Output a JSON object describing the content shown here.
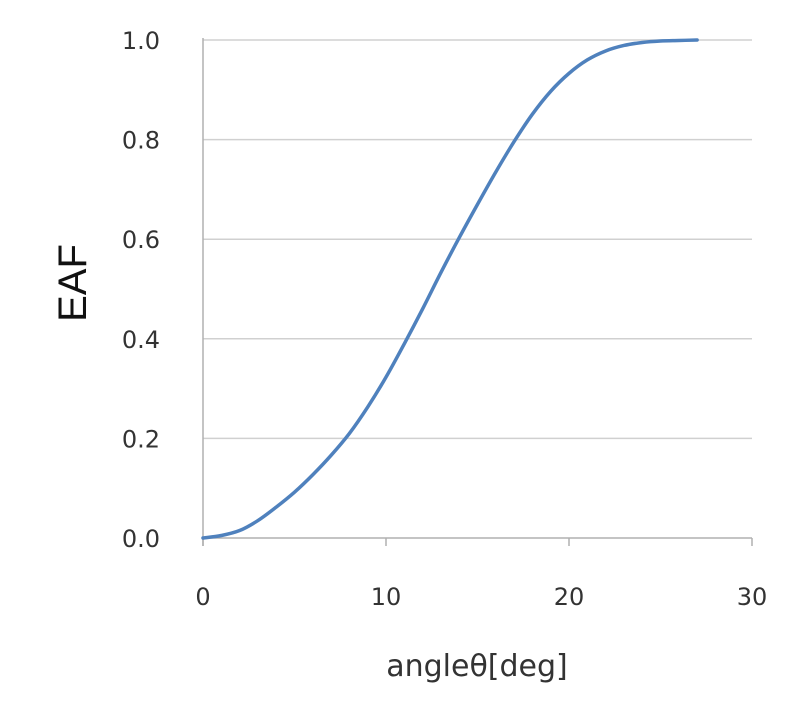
{
  "chart_data": {
    "type": "line",
    "title": "",
    "xlabel": "angleθ[deg]",
    "ylabel": "EAF",
    "xlim": [
      0,
      30
    ],
    "ylim": [
      0,
      1.0
    ],
    "x_ticks": [
      "0",
      "10",
      "20",
      "30"
    ],
    "y_ticks": [
      "0.0",
      "0.2",
      "0.4",
      "0.6",
      "0.8",
      "1.0"
    ],
    "grid": "horizontal",
    "legend": "none",
    "series_color": "#4f81bd",
    "series": [
      {
        "x": [
          0,
          1,
          2,
          3,
          4,
          5,
          6,
          7,
          8,
          9,
          10,
          11,
          12,
          13,
          14,
          15,
          16,
          17,
          18,
          19,
          20,
          21,
          22,
          23,
          24,
          25,
          26,
          27
        ],
        "y": [
          0.0,
          0.005,
          0.015,
          0.035,
          0.062,
          0.092,
          0.127,
          0.166,
          0.21,
          0.263,
          0.323,
          0.39,
          0.46,
          0.533,
          0.603,
          0.67,
          0.735,
          0.796,
          0.851,
          0.897,
          0.933,
          0.96,
          0.978,
          0.989,
          0.995,
          0.998,
          0.999,
          1.0
        ]
      }
    ]
  }
}
